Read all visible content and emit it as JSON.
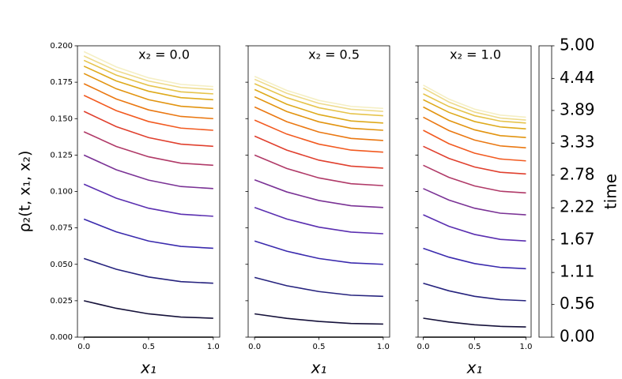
{
  "chart_data": [
    {
      "type": "line",
      "annotation": "x₂ = 0.0",
      "xlabel": "x₁",
      "ylabel": "ρ₂(t, x₁, x₂)",
      "x": [
        0,
        0.25,
        0.5,
        0.75,
        1
      ],
      "xlim": [
        -0.05,
        1.05
      ],
      "xticks": [
        {
          "value": 0,
          "label": "0.0"
        },
        {
          "value": 0.5,
          "label": "0.5"
        },
        {
          "value": 1,
          "label": "1.0"
        }
      ],
      "ylim": [
        0,
        0.2
      ],
      "yticks": [
        {
          "value": 0,
          "label": "0.000"
        },
        {
          "value": 0.025,
          "label": "0.025"
        },
        {
          "value": 0.05,
          "label": "0.050"
        },
        {
          "value": 0.075,
          "label": "0.075"
        },
        {
          "value": 0.1,
          "label": "0.100"
        },
        {
          "value": 0.125,
          "label": "0.125"
        },
        {
          "value": 0.15,
          "label": "0.150"
        },
        {
          "value": 0.175,
          "label": "0.175"
        },
        {
          "value": 0.2,
          "label": "0.200"
        }
      ],
      "series": [
        {
          "color": "#000000",
          "values": [
            0,
            0,
            0,
            0,
            0
          ]
        },
        {
          "color": "#15113a",
          "values": [
            0.025,
            0.0198,
            0.016,
            0.0138,
            0.013
          ]
        },
        {
          "color": "#26237e",
          "values": [
            0.054,
            0.0466,
            0.0413,
            0.0381,
            0.037
          ]
        },
        {
          "color": "#3a2aad",
          "values": [
            0.081,
            0.0723,
            0.066,
            0.0623,
            0.061
          ]
        },
        {
          "color": "#5a2fb0",
          "values": [
            0.105,
            0.0954,
            0.0885,
            0.0844,
            0.083
          ]
        },
        {
          "color": "#7a3295",
          "values": [
            0.125,
            0.1149,
            0.1078,
            0.1034,
            0.102
          ]
        },
        {
          "color": "#b03a68",
          "values": [
            0.141,
            0.1309,
            0.1238,
            0.1194,
            0.118
          ]
        },
        {
          "color": "#e0402e",
          "values": [
            0.155,
            0.1445,
            0.137,
            0.1325,
            0.131
          ]
        },
        {
          "color": "#f25a20",
          "values": [
            0.166,
            0.1555,
            0.148,
            0.1435,
            0.142
          ]
        },
        {
          "color": "#ea7812",
          "values": [
            0.174,
            0.1635,
            0.156,
            0.1515,
            0.15
          ]
        },
        {
          "color": "#e29410",
          "values": [
            0.181,
            0.1705,
            0.163,
            0.1585,
            0.157
          ]
        },
        {
          "color": "#deaa1c",
          "values": [
            0.186,
            0.1759,
            0.1688,
            0.1644,
            0.163
          ]
        },
        {
          "color": "#e6c44c",
          "values": [
            0.19,
            0.1799,
            0.1728,
            0.1684,
            0.167
          ]
        },
        {
          "color": "#eedb8c",
          "values": [
            0.193,
            0.1829,
            0.1758,
            0.1714,
            0.17
          ]
        },
        {
          "color": "#f5efc4",
          "values": [
            0.196,
            0.1855,
            0.178,
            0.1735,
            0.172
          ]
        }
      ]
    },
    {
      "type": "line",
      "annotation": "x₂ = 0.5",
      "xlabel": "x₁",
      "x": [
        0,
        0.25,
        0.5,
        0.75,
        1
      ],
      "xlim": [
        -0.05,
        1.05
      ],
      "xticks": [
        {
          "value": 0,
          "label": "0.0"
        },
        {
          "value": 0.5,
          "label": "0.5"
        },
        {
          "value": 1,
          "label": "1.0"
        }
      ],
      "ylim": [
        0,
        0.2
      ],
      "yticks": [
        0,
        0.025,
        0.05,
        0.075,
        0.1,
        0.125,
        0.15,
        0.175,
        0.2
      ],
      "series": [
        {
          "color": "#000000",
          "values": [
            0,
            0,
            0,
            0,
            0
          ]
        },
        {
          "color": "#15113a",
          "values": [
            0.016,
            0.0129,
            0.0108,
            0.0094,
            0.009
          ]
        },
        {
          "color": "#26237e",
          "values": [
            0.041,
            0.0353,
            0.0313,
            0.0288,
            0.028
          ]
        },
        {
          "color": "#3a2aad",
          "values": [
            0.066,
            0.059,
            0.054,
            0.051,
            0.05
          ]
        },
        {
          "color": "#5a2fb0",
          "values": [
            0.089,
            0.0811,
            0.0755,
            0.0721,
            0.071
          ]
        },
        {
          "color": "#7a3295",
          "values": [
            0.108,
            0.0997,
            0.0938,
            0.0902,
            0.089
          ]
        },
        {
          "color": "#b03a68",
          "values": [
            0.125,
            0.1158,
            0.1093,
            0.1053,
            0.104
          ]
        },
        {
          "color": "#e0402e",
          "values": [
            0.138,
            0.1284,
            0.1215,
            0.1174,
            0.116
          ]
        },
        {
          "color": "#f25a20",
          "values": [
            0.149,
            0.1394,
            0.1325,
            0.1284,
            0.127
          ]
        },
        {
          "color": "#ea7812",
          "values": [
            0.158,
            0.1479,
            0.1408,
            0.1364,
            0.135
          ]
        },
        {
          "color": "#e29410",
          "values": [
            0.165,
            0.1549,
            0.1478,
            0.1434,
            0.142
          ]
        },
        {
          "color": "#deaa1c",
          "values": [
            0.17,
            0.1599,
            0.1528,
            0.1484,
            0.147
          ]
        },
        {
          "color": "#e6c44c",
          "values": [
            0.174,
            0.1644,
            0.1575,
            0.1534,
            0.152
          ]
        },
        {
          "color": "#eedb8c",
          "values": [
            0.177,
            0.1674,
            0.1605,
            0.1564,
            0.155
          ]
        },
        {
          "color": "#f5efc4",
          "values": [
            0.179,
            0.1694,
            0.1625,
            0.1584,
            0.157
          ]
        }
      ]
    },
    {
      "type": "line",
      "annotation": "x₂ = 1.0",
      "xlabel": "x₁",
      "x": [
        0,
        0.25,
        0.5,
        0.75,
        1
      ],
      "xlim": [
        -0.05,
        1.05
      ],
      "xticks": [
        {
          "value": 0,
          "label": "0.0"
        },
        {
          "value": 0.5,
          "label": "0.5"
        },
        {
          "value": 1,
          "label": "1.0"
        }
      ],
      "ylim": [
        0,
        0.2
      ],
      "yticks": [
        0,
        0.025,
        0.05,
        0.075,
        0.1,
        0.125,
        0.15,
        0.175,
        0.2
      ],
      "series": [
        {
          "color": "#000000",
          "values": [
            0,
            0,
            0,
            0,
            0
          ]
        },
        {
          "color": "#15113a",
          "values": [
            0.013,
            0.0104,
            0.0085,
            0.0074,
            0.007
          ]
        },
        {
          "color": "#26237e",
          "values": [
            0.037,
            0.0318,
            0.028,
            0.0258,
            0.025
          ]
        },
        {
          "color": "#3a2aad",
          "values": [
            0.061,
            0.0549,
            0.0505,
            0.0479,
            0.047
          ]
        },
        {
          "color": "#5a2fb0",
          "values": [
            0.084,
            0.0761,
            0.0705,
            0.0671,
            0.066
          ]
        },
        {
          "color": "#7a3295",
          "values": [
            0.102,
            0.0941,
            0.0885,
            0.0851,
            0.084
          ]
        },
        {
          "color": "#b03a68",
          "values": [
            0.118,
            0.1097,
            0.1038,
            0.1002,
            0.099
          ]
        },
        {
          "color": "#e0402e",
          "values": [
            0.131,
            0.1227,
            0.1168,
            0.1132,
            0.112
          ]
        },
        {
          "color": "#f25a20",
          "values": [
            0.142,
            0.1328,
            0.1263,
            0.1223,
            0.121
          ]
        },
        {
          "color": "#ea7812",
          "values": [
            0.151,
            0.1418,
            0.1353,
            0.1313,
            0.13
          ]
        },
        {
          "color": "#e29410",
          "values": [
            0.158,
            0.1488,
            0.1423,
            0.1383,
            0.137
          ]
        },
        {
          "color": "#deaa1c",
          "values": [
            0.163,
            0.1543,
            0.148,
            0.1443,
            0.143
          ]
        },
        {
          "color": "#e6c44c",
          "values": [
            0.167,
            0.1583,
            0.152,
            0.1483,
            0.147
          ]
        },
        {
          "color": "#eedb8c",
          "values": [
            0.171,
            0.1614,
            0.1545,
            0.1504,
            0.149
          ]
        },
        {
          "color": "#f5efc4",
          "values": [
            0.173,
            0.1634,
            0.1565,
            0.1524,
            0.151
          ]
        }
      ]
    },
    {
      "type": "colorbar",
      "label": "time",
      "ylim": [
        0,
        5
      ],
      "colors": [
        "#000000",
        "#26237e",
        "#4a2db5",
        "#7a3295",
        "#c03c55",
        "#f04828",
        "#ee7a12",
        "#e2a618",
        "#eedb8c",
        "#fbf8e6"
      ],
      "yticks": [
        {
          "value": 0,
          "label": "0.00"
        },
        0.56,
        1.11,
        1.67,
        2.22,
        2.78,
        3.33,
        3.89,
        4.44,
        {
          "value": 5,
          "label": "5.00"
        }
      ]
    }
  ]
}
